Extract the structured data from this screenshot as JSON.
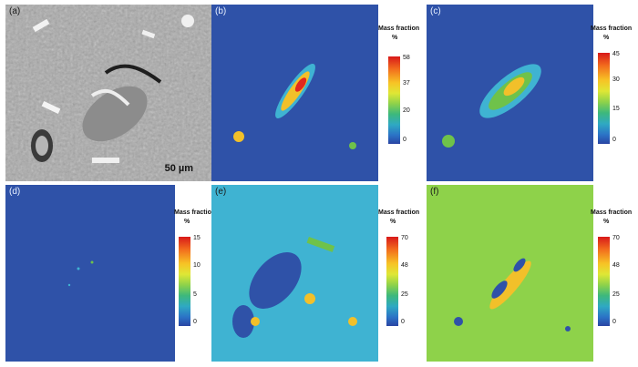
{
  "panels": [
    {
      "label": "(a)",
      "scale_bar": "50 µm"
    },
    {
      "label": "(b)",
      "legend": {
        "title": "Mass fraction",
        "unit": "%",
        "ticks": [
          "58",
          "37",
          "20",
          "0"
        ]
      }
    },
    {
      "label": "(c)",
      "legend": {
        "title": "Mass fraction",
        "unit": "%",
        "ticks": [
          "45",
          "30",
          "15",
          "0"
        ]
      }
    },
    {
      "label": "(d)",
      "legend": {
        "title": "Mass fraction",
        "unit": "%",
        "ticks": [
          "15",
          "10",
          "5",
          "0"
        ]
      }
    },
    {
      "label": "(e)",
      "legend": {
        "title": "Mass fraction",
        "unit": "%",
        "ticks": [
          "70",
          "48",
          "25",
          "0"
        ]
      }
    },
    {
      "label": "(f)",
      "legend": {
        "title": "Mass fraction",
        "unit": "%",
        "ticks": [
          "70",
          "48",
          "25",
          "0"
        ]
      }
    }
  ],
  "colors": {
    "map_background": "#2f52a8",
    "hot": "#e2281f",
    "warm": "#f2c02a",
    "green": "#6fc24a",
    "cyan": "#3fb3d2"
  }
}
